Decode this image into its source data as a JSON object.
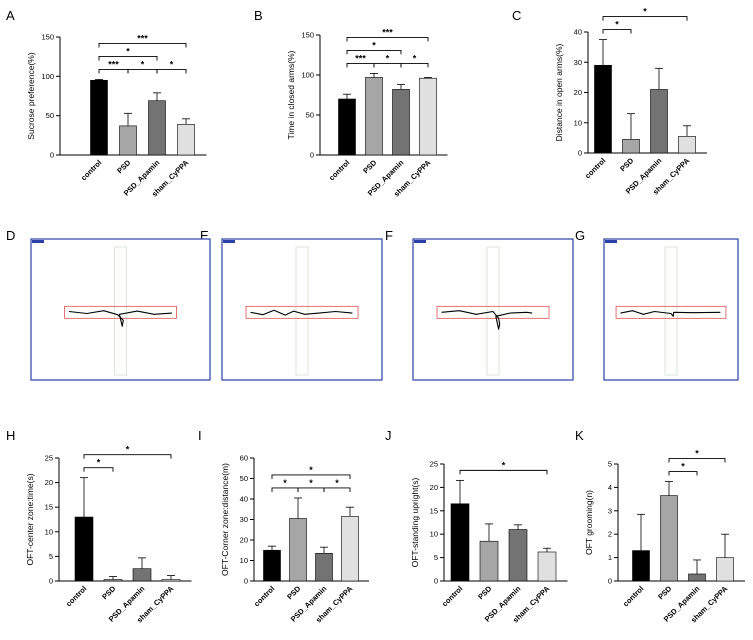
{
  "colors": {
    "bars": [
      "#000000",
      "#a6a6a6",
      "#737373",
      "#e0e0e0"
    ],
    "maze_frame": "#2c3fa8",
    "open_arm": "#e05050",
    "closed_arm": "#cfe2cc",
    "track": "#000000"
  },
  "chart_data": [
    {
      "panel": "A",
      "type": "bar",
      "categories": [
        "control",
        "PSD",
        "PSD_Apamin",
        "sham_CyPPA"
      ],
      "values": [
        95,
        37,
        69,
        39
      ],
      "errors": [
        1,
        16,
        10,
        7
      ],
      "ylabel": "Sucrose preference(%)",
      "yticks": [
        0,
        50,
        100,
        150
      ],
      "ylim": [
        0,
        150
      ],
      "significance": [
        {
          "from": 0,
          "to": 1,
          "label": "***"
        },
        {
          "from": 0,
          "to": 2,
          "label": "*"
        },
        {
          "from": 0,
          "to": 3,
          "label": "***"
        },
        {
          "from": 1,
          "to": 2,
          "label": "*"
        },
        {
          "from": 2,
          "to": 3,
          "label": "*"
        }
      ]
    },
    {
      "panel": "B",
      "type": "bar",
      "categories": [
        "control",
        "PSD",
        "PSD_Apamin",
        "sham_CyPPA"
      ],
      "values": [
        70,
        97,
        82,
        96
      ],
      "errors": [
        6,
        5,
        6,
        1
      ],
      "ylabel": "Time in closed arms(%)",
      "yticks": [
        0,
        50,
        100,
        150
      ],
      "ylim": [
        0,
        150
      ],
      "significance": [
        {
          "from": 0,
          "to": 1,
          "label": "***"
        },
        {
          "from": 0,
          "to": 2,
          "label": "*"
        },
        {
          "from": 0,
          "to": 3,
          "label": "***"
        },
        {
          "from": 1,
          "to": 2,
          "label": "*"
        },
        {
          "from": 2,
          "to": 3,
          "label": "*"
        }
      ]
    },
    {
      "panel": "C",
      "type": "bar",
      "categories": [
        "control",
        "PSD",
        "PSD_Apamin",
        "sham_CyPPA"
      ],
      "values": [
        29,
        4.5,
        21,
        5.5
      ],
      "errors": [
        8.5,
        8.5,
        7,
        3.5
      ],
      "ylabel": "Distance in open arms(%)",
      "yticks": [
        0,
        10,
        20,
        30,
        40
      ],
      "ylim": [
        0,
        40
      ],
      "significance": [
        {
          "from": 0,
          "to": 1,
          "label": "*"
        },
        {
          "from": 0,
          "to": 3,
          "label": "*"
        }
      ]
    },
    {
      "panel": "H",
      "type": "bar",
      "categories": [
        "control",
        "PSD",
        "PSD_Apamin",
        "sham_CyPPA"
      ],
      "values": [
        13,
        0.3,
        2.5,
        0.3
      ],
      "errors": [
        8,
        0.6,
        2.2,
        0.8
      ],
      "ylabel": "OFT-center zone:time(s)",
      "yticks": [
        0,
        5,
        10,
        15,
        20,
        25
      ],
      "ylim": [
        0,
        25
      ],
      "significance": [
        {
          "from": 0,
          "to": 1,
          "label": "*"
        },
        {
          "from": 0,
          "to": 3,
          "label": "*"
        }
      ]
    },
    {
      "panel": "I",
      "type": "bar",
      "categories": [
        "control",
        "PSD",
        "PSD_Apamin",
        "sham_CyPPA"
      ],
      "values": [
        15,
        30.5,
        13.5,
        31.5
      ],
      "errors": [
        2,
        10,
        3,
        4.5
      ],
      "ylabel": "OFT-Corner zone:distance(m)",
      "yticks": [
        0,
        10,
        20,
        30,
        40,
        50,
        60
      ],
      "ylim": [
        0,
        60
      ],
      "significance": [
        {
          "from": 0,
          "to": 1,
          "label": "*"
        },
        {
          "from": 0,
          "to": 3,
          "label": "*"
        },
        {
          "from": 1,
          "to": 2,
          "label": "*"
        },
        {
          "from": 2,
          "to": 3,
          "label": "*"
        }
      ]
    },
    {
      "panel": "J",
      "type": "bar",
      "categories": [
        "control",
        "PSD",
        "PSD_Apamin",
        "sham_CyPPA"
      ],
      "values": [
        16.5,
        8.5,
        11,
        6.2
      ],
      "errors": [
        5,
        3.7,
        1,
        0.8
      ],
      "ylabel": "OFT-standing upright(s)",
      "yticks": [
        0,
        5,
        10,
        15,
        20,
        25
      ],
      "ylim": [
        0,
        25
      ],
      "significance": [
        {
          "from": 0,
          "to": 3,
          "label": "*"
        }
      ]
    },
    {
      "panel": "K",
      "type": "bar",
      "categories": [
        "control",
        "PSD",
        "PSD_Apamin",
        "sham_CyPPA"
      ],
      "values": [
        1.3,
        3.65,
        0.3,
        1.0
      ],
      "errors": [
        1.55,
        0.6,
        0.6,
        1.0
      ],
      "ylabel": "OFT grooming(n)",
      "yticks": [
        0,
        1,
        2,
        3,
        4,
        5
      ],
      "ylim": [
        0,
        5
      ],
      "significance": [
        {
          "from": 1,
          "to": 2,
          "label": "*"
        },
        {
          "from": 1,
          "to": 3,
          "label": "*"
        }
      ]
    }
  ],
  "maze_panels": [
    {
      "panel": "D",
      "trace": "control"
    },
    {
      "panel": "E",
      "trace": "PSD"
    },
    {
      "panel": "F",
      "trace": "PSD_Apamin"
    },
    {
      "panel": "G",
      "trace": "sham_CyPPA"
    }
  ]
}
